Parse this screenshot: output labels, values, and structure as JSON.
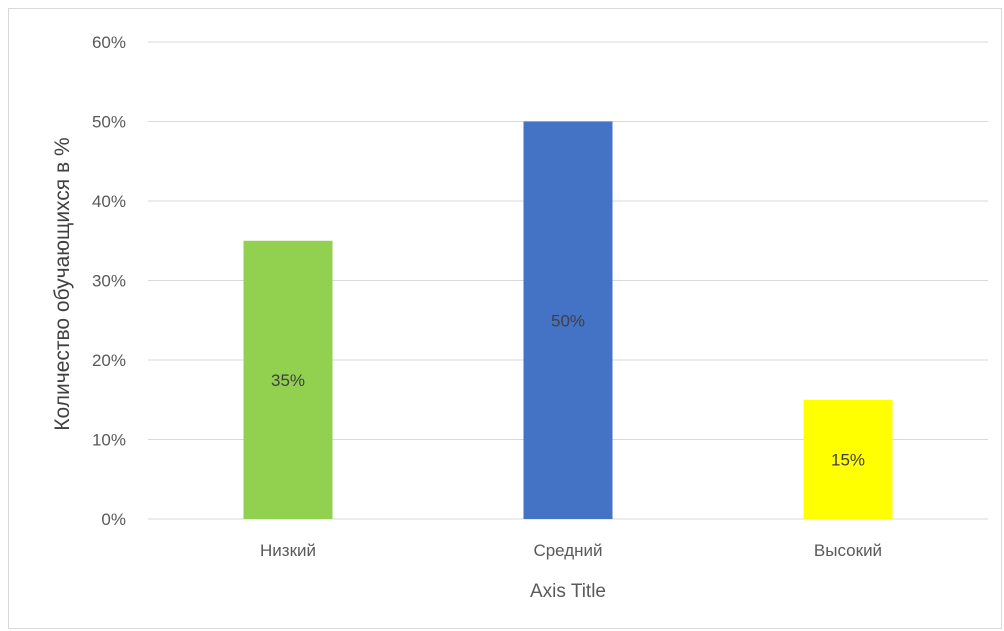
{
  "chart_data": {
    "type": "bar",
    "categories": [
      "Низкий",
      "Средний",
      "Высокий"
    ],
    "values": [
      35,
      50,
      15
    ],
    "data_labels": [
      "35%",
      "50%",
      "15%"
    ],
    "bar_colors": [
      "#92d050",
      "#4472c4",
      "#ffff00"
    ],
    "title": "",
    "xlabel": "Axis Title",
    "ylabel": "Количество обучающихся в %",
    "ylim": [
      0,
      60
    ],
    "yticks": [
      0,
      10,
      20,
      30,
      40,
      50,
      60
    ],
    "ytick_labels": [
      "0%",
      "10%",
      "20%",
      "30%",
      "40%",
      "50%",
      "60%"
    ],
    "grid": true,
    "gridline_color": "#d9d9d9",
    "legend": "none"
  }
}
